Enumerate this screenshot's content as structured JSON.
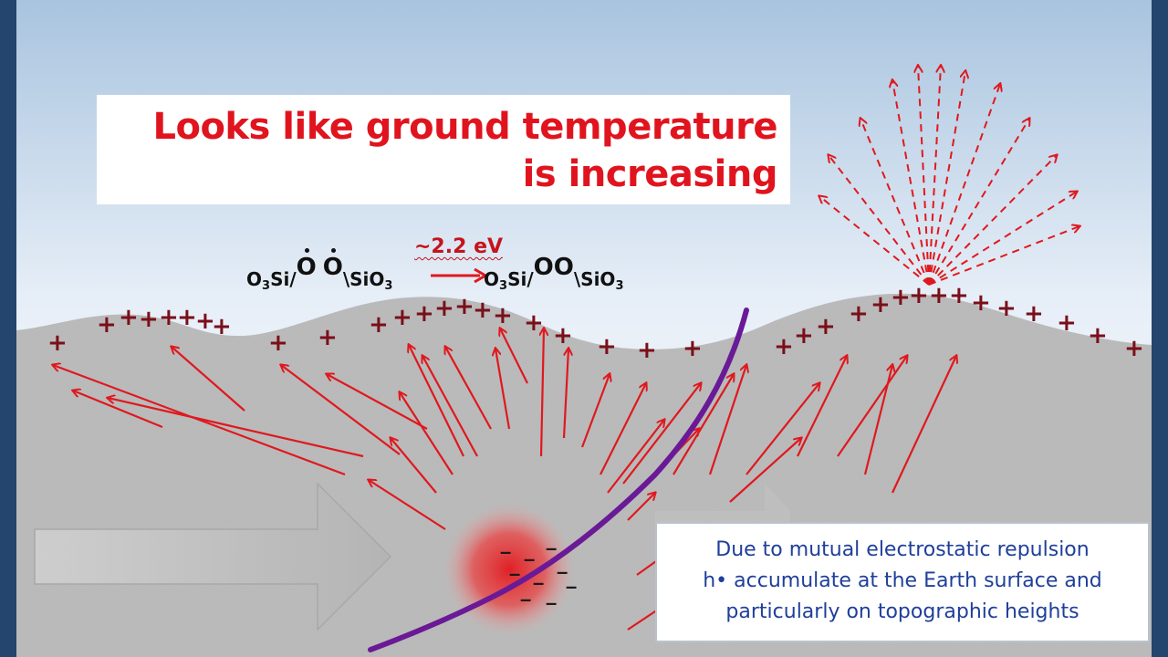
{
  "slide": {
    "title_line1": "Looks like ground temperature",
    "title_line2": "is increasing"
  },
  "reaction": {
    "reactant_prefix": "O",
    "reactant_sub": "3",
    "reactant_mid": "Si/",
    "radical_o1": "O",
    "radical_o2": "O",
    "reactant_suffix": "\\SiO",
    "reactant_suffix_sub": "3",
    "energy": "~2.2 eV",
    "product_prefix": "O",
    "product_sub": "3",
    "product_mid": "Si/",
    "product_peroxy": "OO",
    "product_suffix": "\\SiO",
    "product_suffix_sub": "3"
  },
  "caption": {
    "line1": "Due to mutual electrostatic repulsion",
    "line2": "h• accumulate at the Earth surface and",
    "line3": "particularly on topographic heights"
  },
  "symbols": {
    "positive_charge": "+",
    "negative_charge": "–"
  },
  "colors": {
    "sky_top": "#a9c4df",
    "sky_bottom": "#ffffff",
    "rock": "#b9b9b9",
    "arrow_red": "#e0181e",
    "plus_maroon": "#7a0f1a",
    "fault_purple": "#6a1a96",
    "title_red": "#e0141e",
    "caption_blue": "#1f3f9a",
    "frame_navy": "#23456e"
  }
}
